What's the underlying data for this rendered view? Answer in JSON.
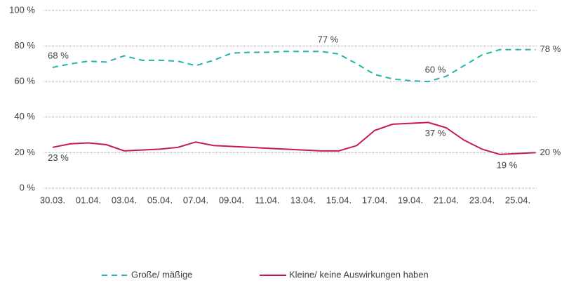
{
  "chart_data": {
    "type": "line",
    "categories": [
      "30.03.",
      null,
      "01.04.",
      null,
      "03.04.",
      null,
      "05.04.",
      null,
      "07.04.",
      null,
      "09.04.",
      null,
      "11.04.",
      null,
      "13.04.",
      null,
      "15.04.",
      null,
      "17.04.",
      null,
      "19.04.",
      null,
      "21.04.",
      null,
      "23.04.",
      null,
      "25.04.",
      null
    ],
    "series": [
      {
        "name": "Große/ mäßige",
        "color": "#1fb5a8",
        "dashed": true,
        "values": [
          68,
          70,
          71.5,
          71,
          74.5,
          72,
          72,
          71.5,
          69,
          72,
          76,
          76.5,
          76.5,
          77,
          77,
          77,
          75.5,
          70,
          64,
          61.5,
          60.5,
          60,
          63,
          69,
          75,
          78,
          78,
          78
        ],
        "value_labels": [
          "68 %",
          null,
          null,
          null,
          null,
          null,
          null,
          null,
          null,
          null,
          null,
          null,
          null,
          null,
          null,
          "77 %",
          null,
          null,
          null,
          null,
          null,
          "60 %",
          null,
          null,
          null,
          null,
          null,
          "78 %"
        ]
      },
      {
        "name": "Kleine/ keine Auswirkungen haben",
        "color": "#c8175d",
        "dashed": false,
        "values": [
          23,
          25,
          25.5,
          24.5,
          21,
          21.5,
          22,
          23,
          26,
          24,
          23.5,
          23,
          22.5,
          22,
          21.5,
          21,
          21,
          24,
          32.5,
          36,
          36.5,
          37,
          34,
          27,
          22,
          19,
          19.5,
          20
        ],
        "value_labels": [
          "23 %",
          null,
          null,
          null,
          null,
          null,
          null,
          null,
          null,
          null,
          null,
          null,
          null,
          null,
          null,
          null,
          null,
          null,
          null,
          null,
          null,
          "37 %",
          null,
          null,
          null,
          "19 %",
          null,
          "20 %"
        ]
      }
    ],
    "ylim": [
      0,
      100
    ],
    "yticks": [
      {
        "value": 0,
        "label": "0 %"
      },
      {
        "value": 20,
        "label": "20 %"
      },
      {
        "value": 40,
        "label": "40 %"
      },
      {
        "value": 60,
        "label": "60 %"
      },
      {
        "value": 80,
        "label": "80 %"
      },
      {
        "value": 100,
        "label": "100 %"
      }
    ],
    "grid": true,
    "legend": "bottom"
  }
}
